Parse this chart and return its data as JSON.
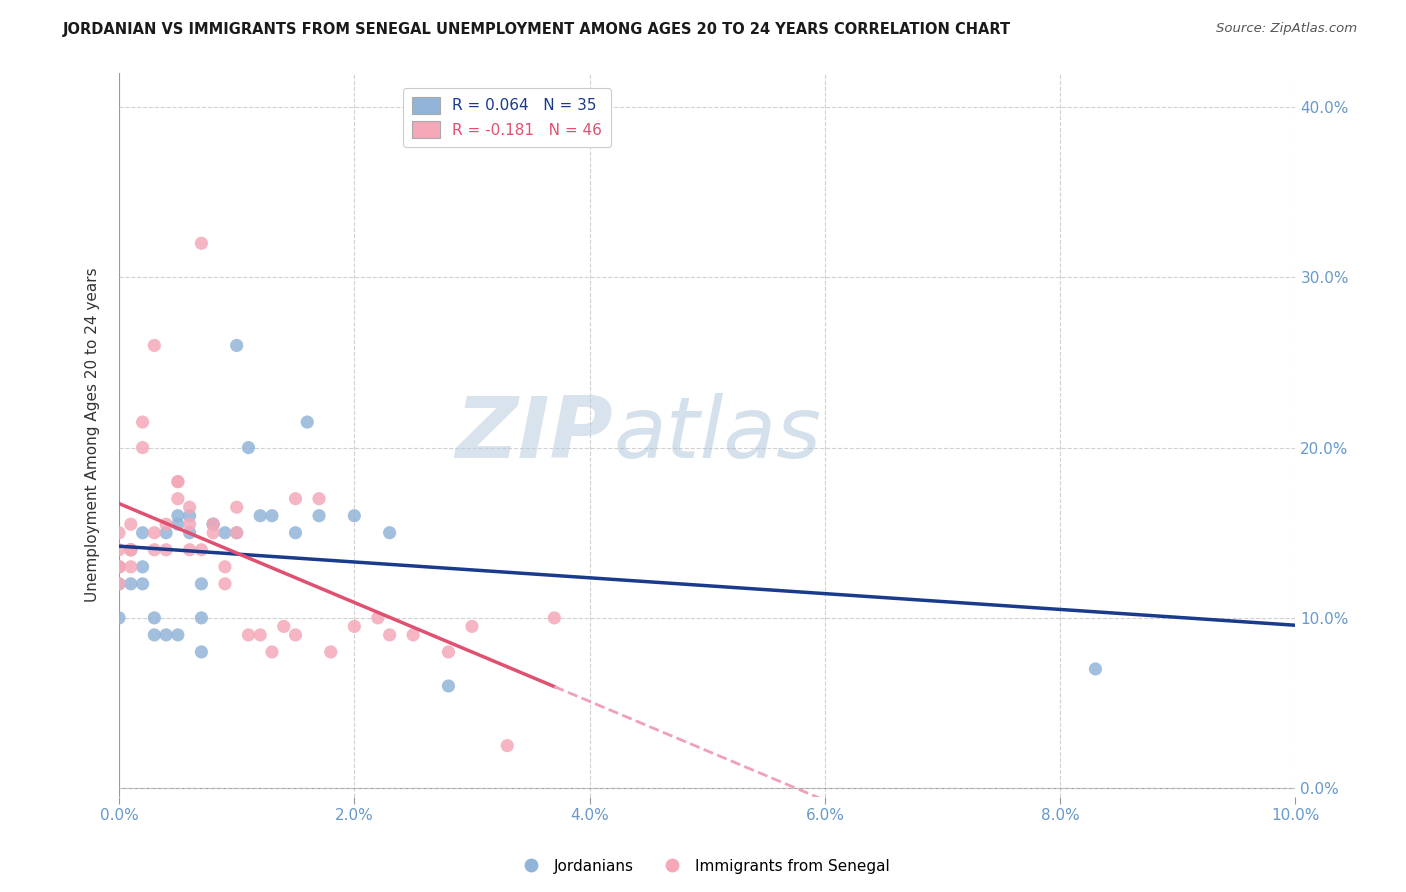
{
  "title": "JORDANIAN VS IMMIGRANTS FROM SENEGAL UNEMPLOYMENT AMONG AGES 20 TO 24 YEARS CORRELATION CHART",
  "source": "Source: ZipAtlas.com",
  "ylabel": "Unemployment Among Ages 20 to 24 years",
  "xlim": [
    0.0,
    0.1
  ],
  "ylim": [
    -0.005,
    0.42
  ],
  "xticks": [
    0.0,
    0.02,
    0.04,
    0.06,
    0.08,
    0.1
  ],
  "yticks": [
    0.0,
    0.1,
    0.2,
    0.3,
    0.4
  ],
  "blue_R": 0.064,
  "blue_N": 35,
  "pink_R": -0.181,
  "pink_N": 46,
  "blue_color": "#92B4D9",
  "pink_color": "#F4A8B8",
  "trend_blue_color": "#1A3A8C",
  "trend_pink_color": "#E05070",
  "trend_pink_dash_color": "#F0A0B8",
  "blue_points_x": [
    0.0,
    0.0,
    0.0,
    0.001,
    0.001,
    0.002,
    0.002,
    0.002,
    0.003,
    0.003,
    0.004,
    0.004,
    0.005,
    0.005,
    0.005,
    0.006,
    0.006,
    0.007,
    0.007,
    0.007,
    0.008,
    0.008,
    0.009,
    0.01,
    0.01,
    0.011,
    0.012,
    0.013,
    0.015,
    0.016,
    0.017,
    0.02,
    0.023,
    0.028,
    0.083
  ],
  "blue_points_y": [
    0.13,
    0.12,
    0.1,
    0.14,
    0.12,
    0.15,
    0.12,
    0.13,
    0.1,
    0.09,
    0.09,
    0.15,
    0.16,
    0.09,
    0.155,
    0.16,
    0.15,
    0.1,
    0.08,
    0.12,
    0.155,
    0.155,
    0.15,
    0.26,
    0.15,
    0.2,
    0.16,
    0.16,
    0.15,
    0.215,
    0.16,
    0.16,
    0.15,
    0.06,
    0.07
  ],
  "pink_points_x": [
    0.0,
    0.0,
    0.0,
    0.0,
    0.0,
    0.001,
    0.001,
    0.001,
    0.001,
    0.002,
    0.002,
    0.003,
    0.003,
    0.003,
    0.004,
    0.004,
    0.005,
    0.005,
    0.005,
    0.006,
    0.006,
    0.006,
    0.007,
    0.007,
    0.008,
    0.008,
    0.009,
    0.009,
    0.01,
    0.01,
    0.011,
    0.012,
    0.013,
    0.014,
    0.015,
    0.015,
    0.017,
    0.018,
    0.02,
    0.022,
    0.023,
    0.025,
    0.028,
    0.03,
    0.033,
    0.037
  ],
  "pink_points_y": [
    0.15,
    0.14,
    0.13,
    0.13,
    0.12,
    0.155,
    0.14,
    0.14,
    0.13,
    0.215,
    0.2,
    0.26,
    0.15,
    0.14,
    0.155,
    0.14,
    0.18,
    0.18,
    0.17,
    0.165,
    0.155,
    0.14,
    0.32,
    0.14,
    0.155,
    0.15,
    0.13,
    0.12,
    0.165,
    0.15,
    0.09,
    0.09,
    0.08,
    0.095,
    0.09,
    0.17,
    0.17,
    0.08,
    0.095,
    0.1,
    0.09,
    0.09,
    0.08,
    0.095,
    0.025,
    0.1
  ],
  "watermark_zip": "ZIP",
  "watermark_atlas": "atlas",
  "background_color": "#FFFFFF",
  "grid_color": "#CCCCCC",
  "tick_label_color": "#6699CC"
}
